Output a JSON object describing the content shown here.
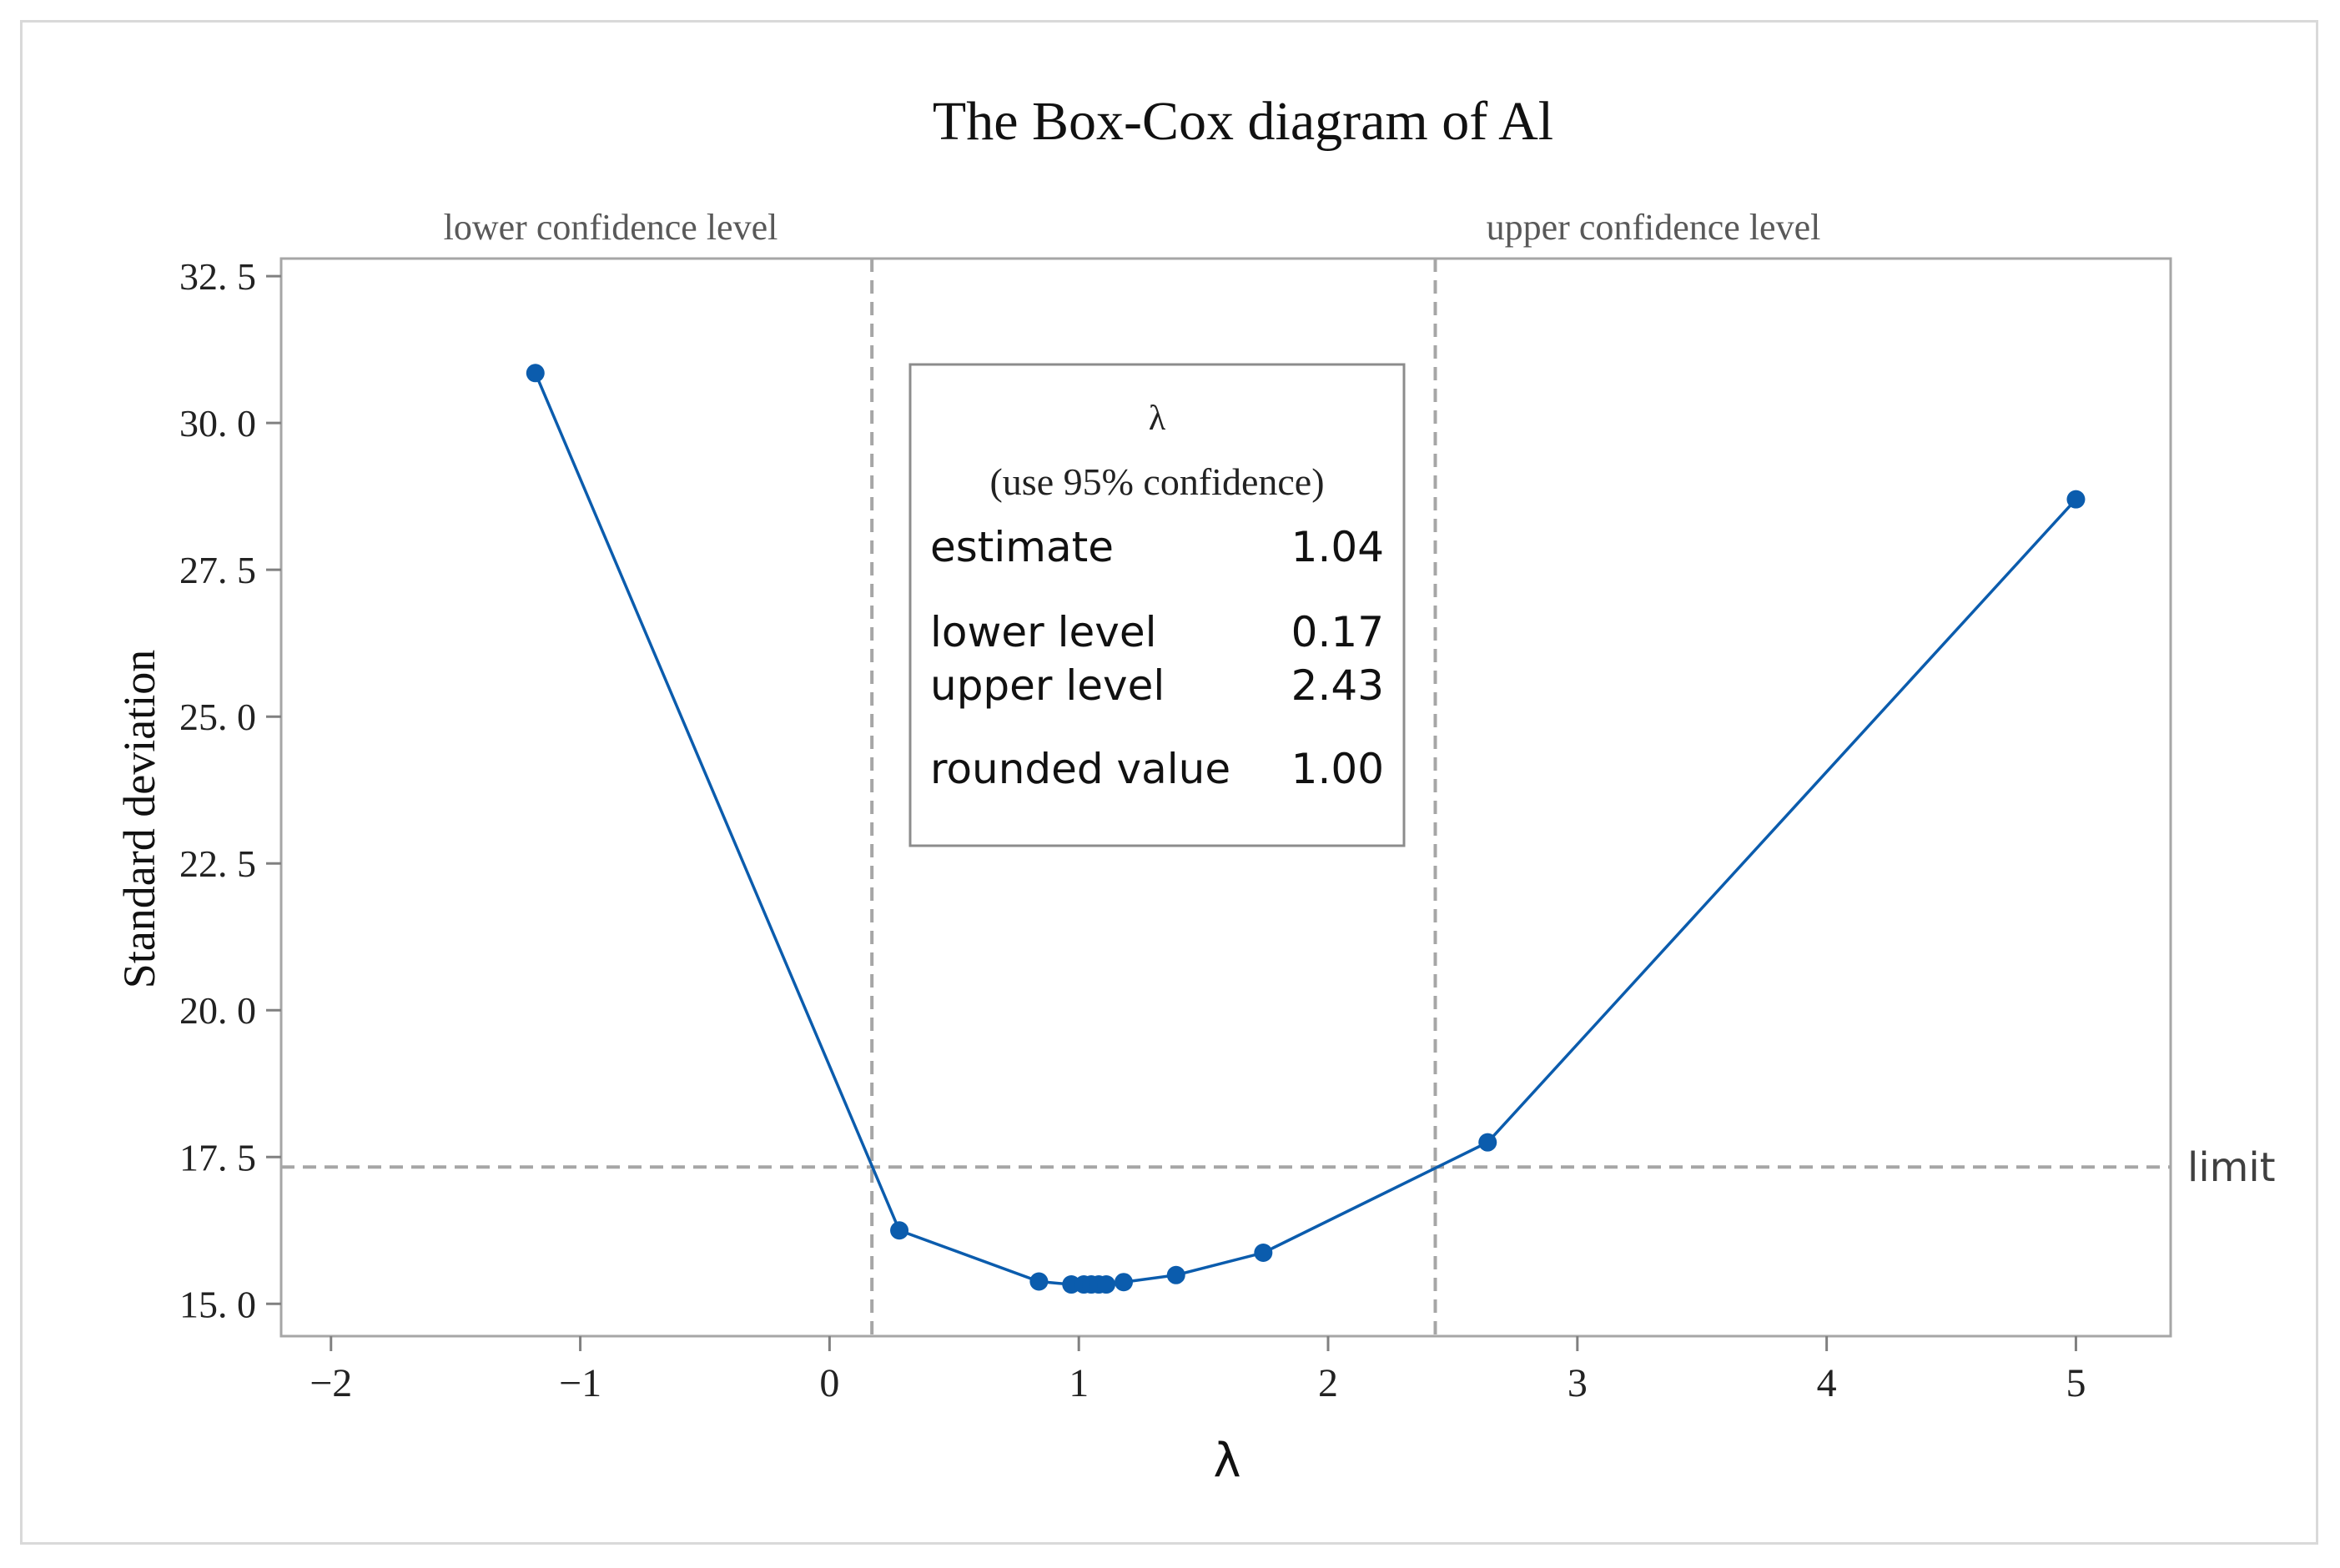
{
  "chart_data": {
    "type": "line",
    "title": "The Box-Cox diagram of Al",
    "xlabel": "λ",
    "ylabel": "Standard deviation",
    "xlim": [
      -2.2,
      5.38
    ],
    "ylim": [
      14.45,
      32.8
    ],
    "xticks": [
      -2,
      -1,
      0,
      1,
      2,
      3,
      4,
      5
    ],
    "xtick_labels": [
      "−2",
      "−1",
      "0",
      "1",
      "2",
      "3",
      "4",
      "5"
    ],
    "yticks": [
      15.0,
      17.5,
      20.0,
      22.5,
      25.0,
      27.5,
      30.0,
      32.5
    ],
    "ytick_labels": [
      "15. 0",
      "17. 5",
      "20. 0",
      "22. 5",
      "25. 0",
      "27. 5",
      "30. 0",
      "32. 5"
    ],
    "grid": false,
    "series": [
      {
        "x": [
          -1.18,
          0.28,
          0.84,
          0.97,
          1.02,
          1.05,
          1.08,
          1.11,
          1.18,
          1.39,
          1.74,
          2.64,
          5.0
        ],
        "y": [
          30.85,
          16.25,
          15.38,
          15.33,
          15.33,
          15.33,
          15.33,
          15.33,
          15.37,
          15.49,
          15.87,
          17.75,
          28.7
        ],
        "color": "#0b5cad"
      }
    ],
    "reference_lines": {
      "lower": {
        "x": 0.17,
        "label": "lower confidence level"
      },
      "upper": {
        "x": 2.43,
        "label": "upper confidence level"
      },
      "limit": {
        "y": 17.33,
        "label": "limit"
      }
    },
    "info_box": {
      "heading": "λ",
      "subheading": "(use 95% confidence)",
      "rows": [
        {
          "label": "estimate",
          "value": "1.04"
        },
        {
          "label": "lower level",
          "value": "0.17"
        },
        {
          "label": "upper level",
          "value": "2.43"
        },
        {
          "label": "rounded value",
          "value": "1.00"
        }
      ]
    }
  }
}
